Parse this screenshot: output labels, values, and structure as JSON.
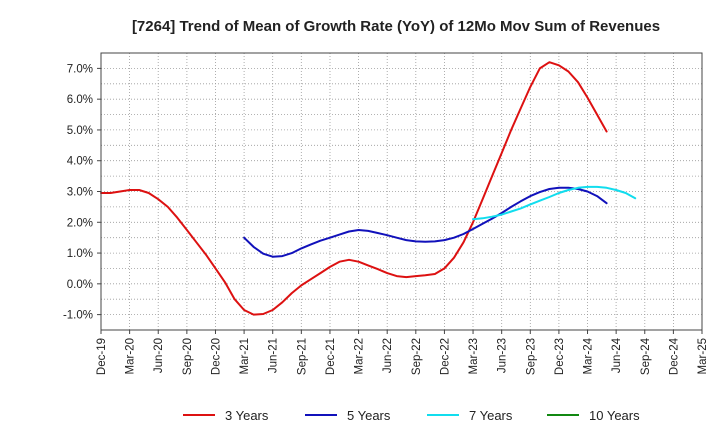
{
  "chart_data": {
    "type": "line",
    "title": "[7264]  Trend of Mean of Growth Rate (YoY) of 12Mo Mov Sum of Revenues",
    "xlabel": "",
    "ylabel": "",
    "ylim": [
      -1.5,
      7.5
    ],
    "y_ticks": [
      -1.0,
      0.0,
      1.0,
      2.0,
      3.0,
      4.0,
      5.0,
      6.0,
      7.0
    ],
    "y_tick_labels": [
      "-1.0%",
      "0.0%",
      "1.0%",
      "2.0%",
      "3.0%",
      "4.0%",
      "5.0%",
      "6.0%",
      "7.0%"
    ],
    "x_ticks": [
      "Dec-19",
      "Mar-20",
      "Jun-20",
      "Sep-20",
      "Dec-20",
      "Mar-21",
      "Jun-21",
      "Sep-21",
      "Dec-21",
      "Mar-22",
      "Jun-22",
      "Sep-22",
      "Dec-22",
      "Mar-23",
      "Jun-23",
      "Sep-23",
      "Dec-23",
      "Mar-24",
      "Jun-24",
      "Sep-24",
      "Dec-24",
      "Mar-25"
    ],
    "grid": true,
    "legend_position": "bottom",
    "series": [
      {
        "name": "3 Years",
        "color": "#dd1111",
        "start_index": 0,
        "values": [
          2.95,
          2.95,
          3.0,
          3.05,
          3.05,
          2.95,
          2.75,
          2.5,
          2.15,
          1.75,
          1.35,
          0.95,
          0.5,
          0.05,
          -0.5,
          -0.85,
          -1.0,
          -0.98,
          -0.85,
          -0.6,
          -0.3,
          -0.05,
          0.15,
          0.35,
          0.55,
          0.72,
          0.78,
          0.72,
          0.6,
          0.48,
          0.35,
          0.25,
          0.22,
          0.25,
          0.28,
          0.32,
          0.5,
          0.85,
          1.35,
          2.0,
          2.75,
          3.5,
          4.25,
          5.0,
          5.7,
          6.4,
          7.0,
          7.2,
          7.1,
          6.9,
          6.55,
          6.05,
          5.5,
          4.95
        ]
      },
      {
        "name": "5 Years",
        "color": "#1111bb",
        "start_index": 15,
        "values": [
          1.5,
          1.2,
          0.98,
          0.88,
          0.9,
          1.0,
          1.15,
          1.28,
          1.4,
          1.5,
          1.6,
          1.7,
          1.75,
          1.72,
          1.65,
          1.58,
          1.5,
          1.42,
          1.38,
          1.37,
          1.38,
          1.42,
          1.5,
          1.62,
          1.78,
          1.95,
          2.12,
          2.3,
          2.5,
          2.68,
          2.85,
          2.98,
          3.08,
          3.12,
          3.12,
          3.08,
          3.0,
          2.85,
          2.62
        ]
      },
      {
        "name": "7 Years",
        "color": "#11ddee",
        "start_index": 39,
        "values": [
          2.1,
          2.13,
          2.18,
          2.25,
          2.35,
          2.45,
          2.58,
          2.7,
          2.82,
          2.95,
          3.05,
          3.12,
          3.15,
          3.15,
          3.12,
          3.05,
          2.95,
          2.78
        ]
      },
      {
        "name": "10 Years",
        "color": "#118811",
        "start_index": 0,
        "values": []
      }
    ]
  }
}
